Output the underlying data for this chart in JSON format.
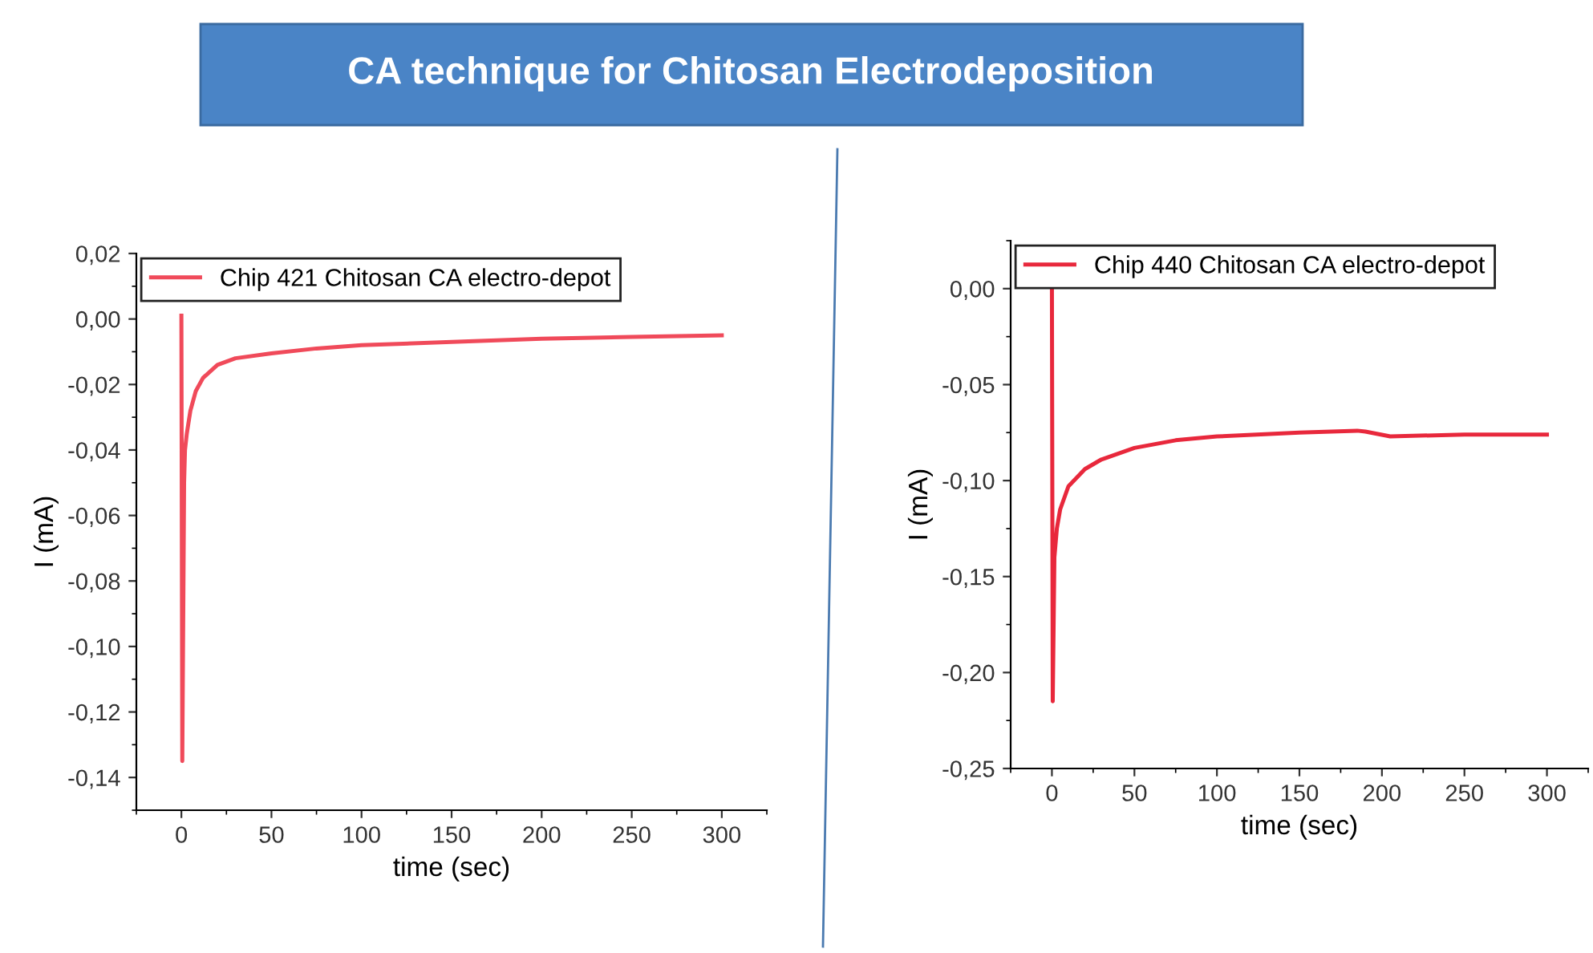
{
  "chart_data": [
    {
      "type": "line",
      "title": "CA technique for Chitosan Electrodeposition",
      "xlabel": "time (sec)",
      "ylabel": "I (mA)",
      "legend": "top left",
      "grid": false,
      "xlim": [
        -25,
        325
      ],
      "ylim": [
        -0.15,
        0.02
      ],
      "xticks": [
        0,
        50,
        100,
        150,
        200,
        250,
        300
      ],
      "yticks": [
        {
          "value": 0.02,
          "label": "0,02"
        },
        {
          "value": 0.0,
          "label": "0,00"
        },
        {
          "value": -0.02,
          "label": "-0,02"
        },
        {
          "value": -0.04,
          "label": "-0,04"
        },
        {
          "value": -0.06,
          "label": "-0,06"
        },
        {
          "value": -0.08,
          "label": "-0,08"
        },
        {
          "value": -0.1,
          "label": "-0,10"
        },
        {
          "value": -0.12,
          "label": "-0,12"
        },
        {
          "value": -0.14,
          "label": "-0,14"
        }
      ],
      "series": [
        {
          "name": "Chip 421 Chitosan CA electro-depot",
          "color": "#f04a5a",
          "x": [
            0,
            0.5,
            1.5,
            2,
            3,
            5,
            8,
            12,
            20,
            30,
            50,
            75,
            100,
            150,
            200,
            250,
            300
          ],
          "values": [
            0.001,
            -0.135,
            -0.05,
            -0.04,
            -0.035,
            -0.028,
            -0.022,
            -0.018,
            -0.014,
            -0.012,
            -0.0105,
            -0.009,
            -0.008,
            -0.007,
            -0.006,
            -0.0055,
            -0.005
          ]
        }
      ]
    },
    {
      "type": "line",
      "xlabel": "time (sec)",
      "ylabel": "I (mA)",
      "legend": "top left",
      "grid": false,
      "xlim": [
        -25,
        325
      ],
      "ylim": [
        -0.25,
        0.025
      ],
      "xticks": [
        0,
        50,
        100,
        150,
        200,
        250,
        300
      ],
      "yticks": [
        {
          "value": 0.0,
          "label": "0,00"
        },
        {
          "value": -0.05,
          "label": "-0,05"
        },
        {
          "value": -0.1,
          "label": "-0,10"
        },
        {
          "value": -0.15,
          "label": "-0,15"
        },
        {
          "value": -0.2,
          "label": "-0,20"
        },
        {
          "value": -0.25,
          "label": "-0,25"
        }
      ],
      "series": [
        {
          "name": "Chip 440 Chitosan CA electro-depot",
          "color": "#e8283c",
          "x": [
            0,
            0.5,
            1.5,
            3,
            5,
            10,
            20,
            30,
            50,
            75,
            100,
            150,
            185,
            190,
            205,
            250,
            300
          ],
          "values": [
            0.0,
            -0.215,
            -0.14,
            -0.125,
            -0.115,
            -0.103,
            -0.094,
            -0.089,
            -0.083,
            -0.079,
            -0.077,
            -0.075,
            -0.074,
            -0.0745,
            -0.077,
            -0.076,
            -0.076
          ]
        }
      ]
    }
  ]
}
